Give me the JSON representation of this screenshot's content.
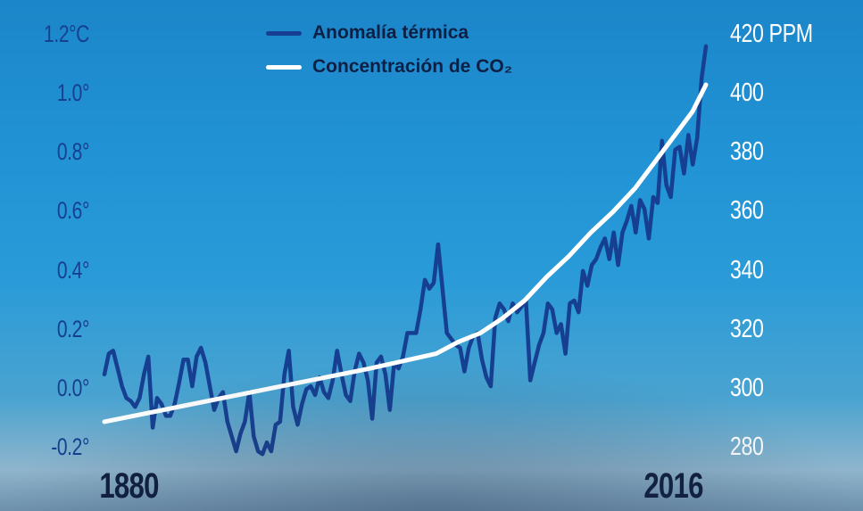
{
  "chart_data": {
    "type": "line",
    "title": "",
    "legend": [
      {
        "label": "Anomalía térmica",
        "color": "#163f92"
      },
      {
        "label": "Concentración de CO₂",
        "color": "#ffffff"
      }
    ],
    "x_range": [
      1880,
      2016
    ],
    "x_tick_labels": [
      "1880",
      "2016"
    ],
    "y_left": {
      "tick_labels": [
        "1.2°C",
        "1.0°",
        "0.8°",
        "0.6°",
        "0.4°",
        "0.2°",
        "0.0°",
        "-0.2°"
      ],
      "tick_values": [
        1.2,
        1.0,
        0.8,
        0.6,
        0.4,
        0.2,
        0.0,
        -0.2
      ],
      "range": [
        -0.2,
        1.2
      ]
    },
    "y_right": {
      "tick_labels": [
        "420 PPM",
        "400",
        "380",
        "360",
        "340",
        "320",
        "300",
        "280"
      ],
      "tick_values": [
        420,
        400,
        380,
        360,
        340,
        320,
        300,
        280
      ],
      "range": [
        280,
        420
      ]
    },
    "series": [
      {
        "name": "Anomalía térmica",
        "axis": "left",
        "color": "#163f92",
        "x_start": 1880,
        "values": [
          0.06,
          0.13,
          0.14,
          0.08,
          0.02,
          -0.02,
          -0.03,
          -0.05,
          -0.02,
          0.06,
          0.12,
          -0.12,
          -0.02,
          -0.04,
          -0.08,
          -0.08,
          -0.04,
          0.03,
          0.11,
          0.11,
          0.02,
          0.12,
          0.15,
          0.1,
          0.02,
          -0.06,
          -0.02,
          0.0,
          -0.1,
          -0.15,
          -0.2,
          -0.14,
          -0.1,
          0.0,
          -0.15,
          -0.2,
          -0.21,
          -0.17,
          -0.2,
          -0.11,
          -0.1,
          0.06,
          0.14,
          -0.05,
          -0.11,
          -0.04,
          0.01,
          0.02,
          -0.01,
          0.05,
          0.0,
          -0.02,
          0.04,
          0.14,
          0.06,
          -0.01,
          -0.03,
          0.07,
          0.13,
          0.1,
          0.04,
          -0.09,
          0.1,
          0.12,
          0.06,
          -0.06,
          0.1,
          0.08,
          0.12,
          0.2,
          0.2,
          0.2,
          0.28,
          0.38,
          0.35,
          0.37,
          0.5,
          0.35,
          0.2,
          0.18,
          0.16,
          0.15,
          0.07,
          0.15,
          0.19,
          0.2,
          0.11,
          0.05,
          0.02,
          0.25,
          0.3,
          0.28,
          0.24,
          0.3,
          0.27,
          0.29,
          0.31,
          0.04,
          0.1,
          0.16,
          0.2,
          0.3,
          0.28,
          0.2,
          0.23,
          0.13,
          0.3,
          0.31,
          0.27,
          0.41,
          0.36,
          0.43,
          0.45,
          0.49,
          0.52,
          0.45,
          0.54,
          0.43,
          0.54,
          0.58,
          0.63,
          0.54,
          0.65,
          0.62,
          0.52,
          0.66,
          0.64,
          0.85,
          0.7,
          0.66,
          0.82,
          0.83,
          0.74,
          0.87,
          0.77,
          0.86,
          1.06,
          1.17
        ]
      },
      {
        "name": "Concentración de CO₂",
        "axis": "right",
        "color": "#ffffff",
        "x": [
          1880,
          1900,
          1920,
          1940,
          1955,
          1960,
          1965,
          1970,
          1975,
          1980,
          1985,
          1990,
          1995,
          2000,
          2005,
          2010,
          2013,
          2016
        ],
        "values": [
          290,
          296,
          302,
          308,
          313,
          317,
          320,
          325,
          331,
          339,
          346,
          354,
          361,
          369,
          379,
          389,
          395,
          404
        ]
      }
    ]
  }
}
